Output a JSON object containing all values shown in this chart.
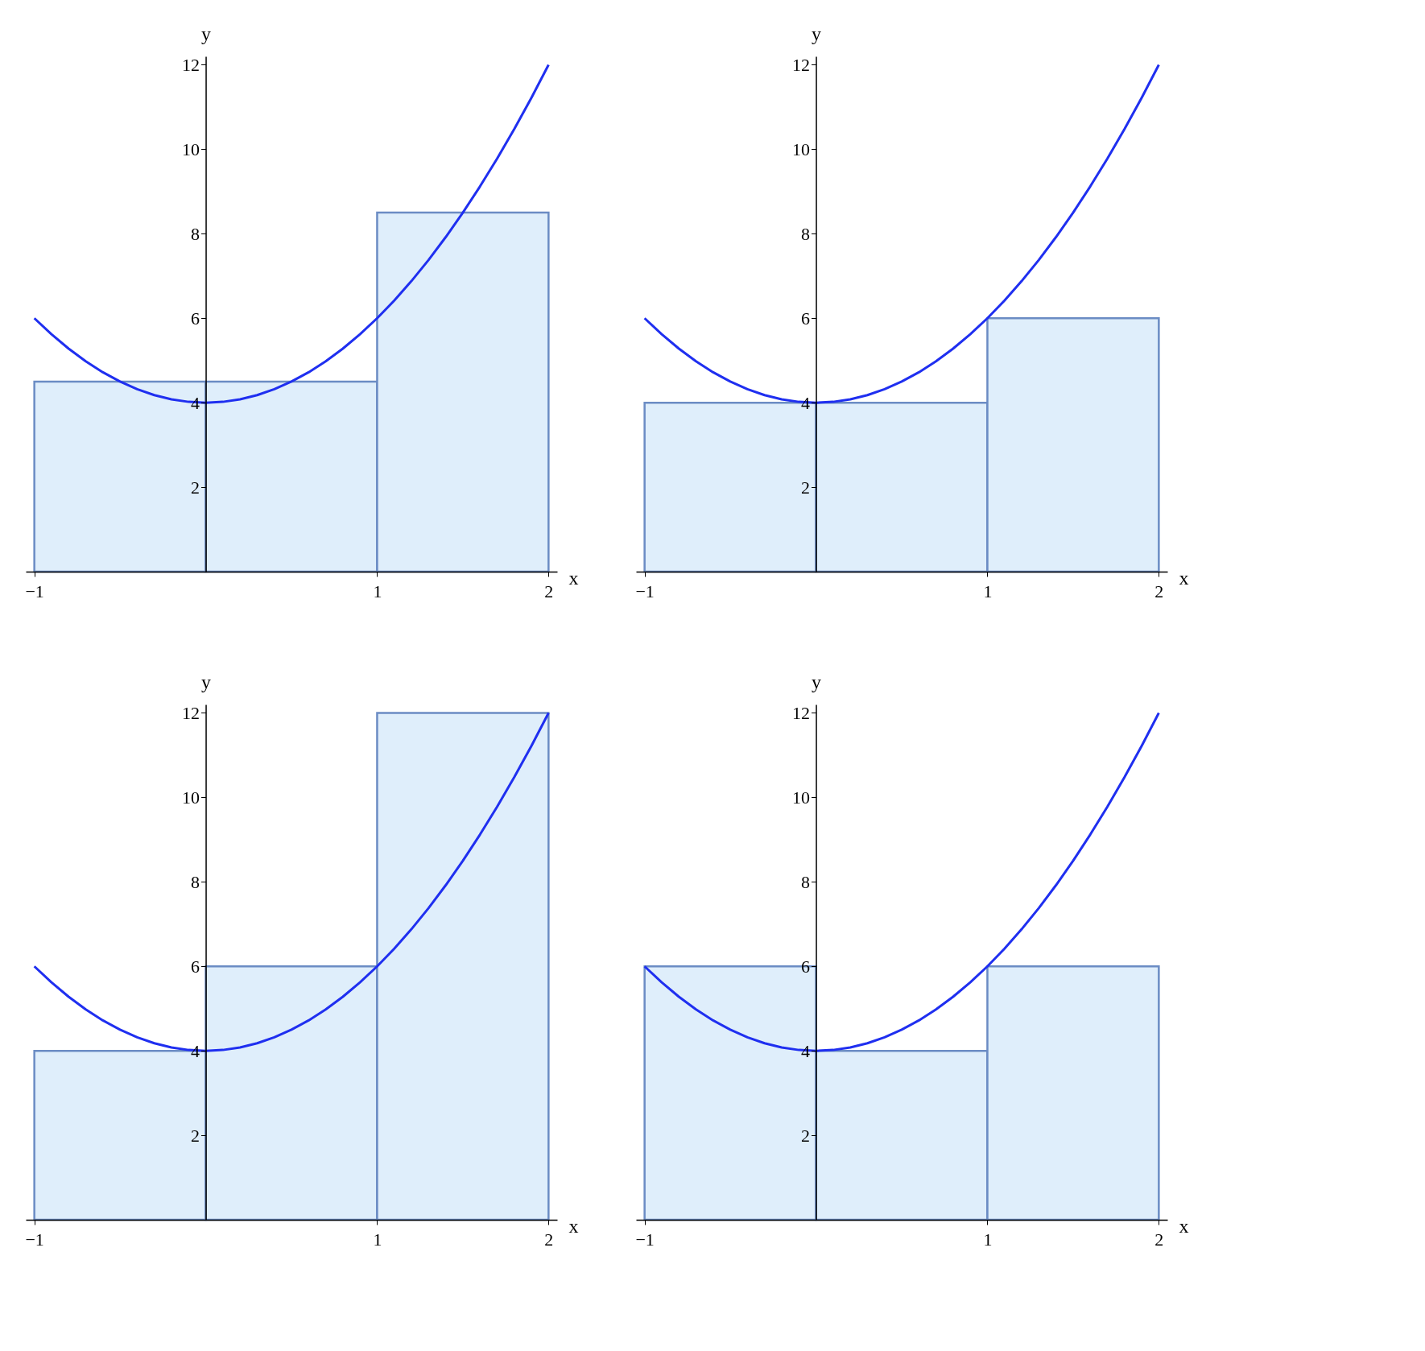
{
  "chart_data": [
    {
      "type": "histogram",
      "xlabel": "x",
      "ylabel": "y",
      "bins": [
        -1,
        0,
        1,
        2
      ],
      "values": [
        4.5,
        4.5,
        8.5
      ],
      "color": "#dfeefb",
      "xlim": [
        -1.05,
        2.05
      ],
      "ylim": [
        0,
        12.2
      ],
      "xticks": [
        -1,
        1,
        2
      ],
      "yticks": [
        2,
        4,
        6,
        8,
        10,
        12
      ],
      "grid": false,
      "series": [
        {
          "type": "line",
          "color": "#1f2ff0",
          "x": [
            -1,
            -0.9,
            -0.8,
            -0.7,
            -0.6,
            -0.5,
            -0.4,
            -0.3,
            -0.2,
            -0.1,
            0,
            0.1,
            0.2,
            0.3,
            0.4,
            0.5,
            0.6,
            0.7,
            0.8,
            0.9,
            1,
            1.1,
            1.2,
            1.3,
            1.4,
            1.5,
            1.6,
            1.7,
            1.8,
            1.9,
            2
          ],
          "values": [
            6,
            5.62,
            5.28,
            4.98,
            4.72,
            4.5,
            4.32,
            4.18,
            4.08,
            4.02,
            4,
            4.02,
            4.08,
            4.18,
            4.32,
            4.5,
            4.72,
            4.98,
            5.28,
            5.62,
            6,
            6.42,
            6.88,
            7.38,
            7.92,
            8.5,
            9.12,
            9.78,
            10.48,
            11.22,
            12
          ]
        }
      ]
    },
    {
      "type": "histogram",
      "xlabel": "x",
      "ylabel": "y",
      "bins": [
        -1,
        0,
        1,
        2
      ],
      "values": [
        4,
        4,
        6
      ],
      "color": "#dfeefb",
      "xlim": [
        -1.05,
        2.05
      ],
      "ylim": [
        0,
        12.2
      ],
      "xticks": [
        -1,
        1,
        2
      ],
      "yticks": [
        2,
        4,
        6,
        8,
        10,
        12
      ],
      "grid": false,
      "series": [
        {
          "type": "line",
          "color": "#1f2ff0",
          "x": [
            -1,
            -0.9,
            -0.8,
            -0.7,
            -0.6,
            -0.5,
            -0.4,
            -0.3,
            -0.2,
            -0.1,
            0,
            0.1,
            0.2,
            0.3,
            0.4,
            0.5,
            0.6,
            0.7,
            0.8,
            0.9,
            1,
            1.1,
            1.2,
            1.3,
            1.4,
            1.5,
            1.6,
            1.7,
            1.8,
            1.9,
            2
          ],
          "values": [
            6,
            5.62,
            5.28,
            4.98,
            4.72,
            4.5,
            4.32,
            4.18,
            4.08,
            4.02,
            4,
            4.02,
            4.08,
            4.18,
            4.32,
            4.5,
            4.72,
            4.98,
            5.28,
            5.62,
            6,
            6.42,
            6.88,
            7.38,
            7.92,
            8.5,
            9.12,
            9.78,
            10.48,
            11.22,
            12
          ]
        }
      ]
    },
    {
      "type": "histogram",
      "xlabel": "x",
      "ylabel": "y",
      "bins": [
        -1,
        0,
        1,
        2
      ],
      "values": [
        4,
        6,
        12
      ],
      "color": "#dfeefb",
      "xlim": [
        -1.05,
        2.05
      ],
      "ylim": [
        0,
        12.2
      ],
      "xticks": [
        -1,
        1,
        2
      ],
      "yticks": [
        2,
        4,
        6,
        8,
        10,
        12
      ],
      "grid": false,
      "series": [
        {
          "type": "line",
          "color": "#1f2ff0",
          "x": [
            -1,
            -0.9,
            -0.8,
            -0.7,
            -0.6,
            -0.5,
            -0.4,
            -0.3,
            -0.2,
            -0.1,
            0,
            0.1,
            0.2,
            0.3,
            0.4,
            0.5,
            0.6,
            0.7,
            0.8,
            0.9,
            1,
            1.1,
            1.2,
            1.3,
            1.4,
            1.5,
            1.6,
            1.7,
            1.8,
            1.9,
            2
          ],
          "values": [
            6,
            5.62,
            5.28,
            4.98,
            4.72,
            4.5,
            4.32,
            4.18,
            4.08,
            4.02,
            4,
            4.02,
            4.08,
            4.18,
            4.32,
            4.5,
            4.72,
            4.98,
            5.28,
            5.62,
            6,
            6.42,
            6.88,
            7.38,
            7.92,
            8.5,
            9.12,
            9.78,
            10.48,
            11.22,
            12
          ]
        }
      ]
    },
    {
      "type": "histogram",
      "xlabel": "x",
      "ylabel": "y",
      "bins": [
        -1,
        0,
        1,
        2
      ],
      "values": [
        6,
        4,
        6
      ],
      "color": "#dfeefb",
      "xlim": [
        -1.05,
        2.05
      ],
      "ylim": [
        0,
        12.2
      ],
      "xticks": [
        -1,
        1,
        2
      ],
      "yticks": [
        2,
        4,
        6,
        8,
        10,
        12
      ],
      "grid": false,
      "series": [
        {
          "type": "line",
          "color": "#1f2ff0",
          "x": [
            -1,
            -0.9,
            -0.8,
            -0.7,
            -0.6,
            -0.5,
            -0.4,
            -0.3,
            -0.2,
            -0.1,
            0,
            0.1,
            0.2,
            0.3,
            0.4,
            0.5,
            0.6,
            0.7,
            0.8,
            0.9,
            1,
            1.1,
            1.2,
            1.3,
            1.4,
            1.5,
            1.6,
            1.7,
            1.8,
            1.9,
            2
          ],
          "values": [
            6,
            5.62,
            5.28,
            4.98,
            4.72,
            4.5,
            4.32,
            4.18,
            4.08,
            4.02,
            4,
            4.02,
            4.08,
            4.18,
            4.32,
            4.5,
            4.72,
            4.98,
            5.28,
            5.62,
            6,
            6.42,
            6.88,
            7.38,
            7.92,
            8.5,
            9.12,
            9.78,
            10.48,
            11.22,
            12
          ]
        }
      ]
    }
  ]
}
